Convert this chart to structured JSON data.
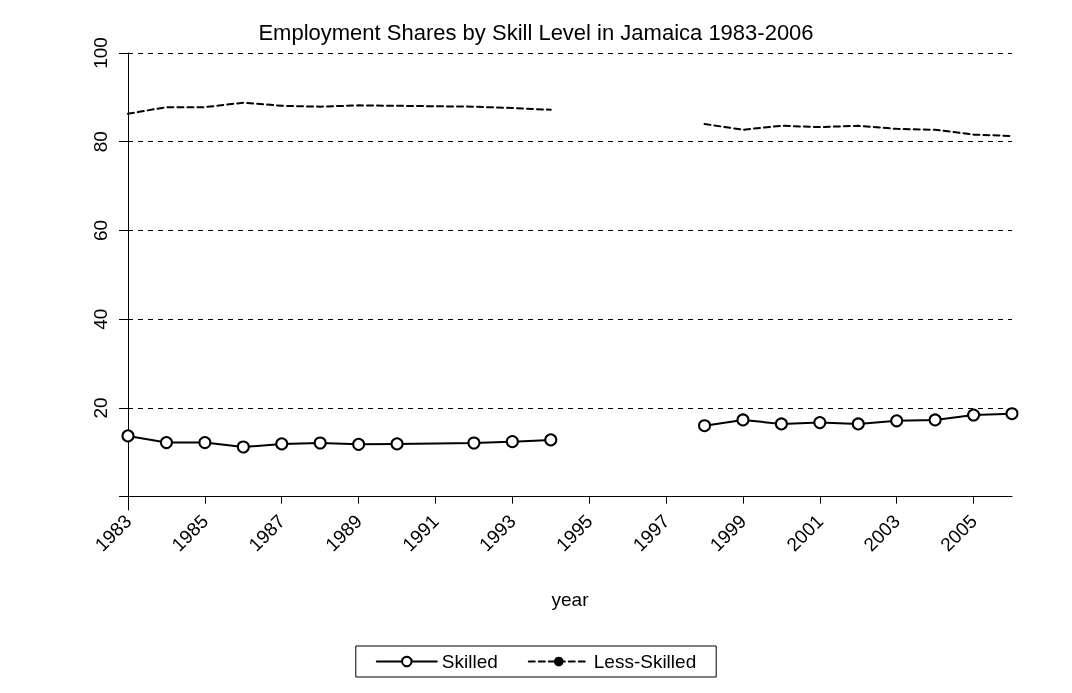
{
  "chart_data": {
    "type": "line",
    "title": "Employment Shares by Skill Level in Jamaica 1983-2006",
    "xlabel": "year",
    "xlim": [
      1983,
      2006
    ],
    "xticks": [
      1983,
      1985,
      1987,
      1989,
      1991,
      1993,
      1995,
      1997,
      1999,
      2001,
      2003,
      2005
    ],
    "ylim": [
      -3,
      100
    ],
    "yticks": [
      {
        "value": 0,
        "label": null
      },
      20,
      40,
      60,
      80,
      100
    ],
    "grid": "y",
    "legend": "bottom",
    "series": [
      {
        "name": "Skilled",
        "color": "#000000",
        "marker": "circle",
        "line_style": "solid",
        "x": [
          1983,
          1984,
          1985,
          1986,
          1987,
          1988,
          1989,
          1990,
          1992,
          1993,
          1994,
          null,
          1998,
          1999,
          2000,
          2001,
          2002,
          2003,
          2004,
          2005,
          2006
        ],
        "values": [
          13.7,
          12.2,
          12.2,
          11.2,
          11.9,
          12.1,
          11.8,
          11.9,
          12.1,
          12.4,
          12.8,
          null,
          16,
          17.3,
          16.4,
          16.7,
          16.4,
          17.1,
          17.3,
          18.4,
          18.7
        ]
      },
      {
        "name": "Less-Skilled",
        "color": "#000000",
        "marker": "none",
        "line_style": "dashed",
        "x": [
          1983,
          1984,
          1985,
          1986,
          1987,
          1988,
          1989,
          1990,
          1992,
          1993,
          1994,
          null,
          1998,
          1999,
          2000,
          2001,
          2002,
          2003,
          2004,
          2005,
          2006
        ],
        "values": [
          86.3,
          87.8,
          87.8,
          88.8,
          88.1,
          87.9,
          88.2,
          88.1,
          87.9,
          87.6,
          87.2,
          null,
          84,
          82.7,
          83.6,
          83.3,
          83.6,
          82.9,
          82.7,
          81.6,
          81.3
        ]
      }
    ]
  }
}
